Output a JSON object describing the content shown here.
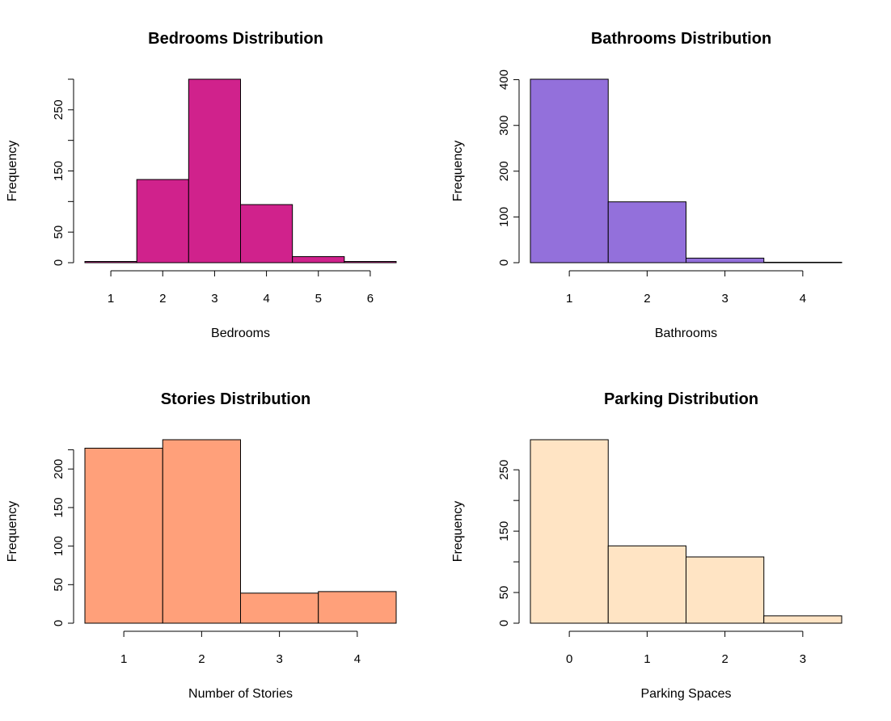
{
  "chart_data": [
    {
      "type": "bar",
      "title": "Bedrooms Distribution",
      "xlabel": "Bedrooms",
      "ylabel": "Frequency",
      "categories": [
        "1",
        "2",
        "3",
        "4",
        "5",
        "6"
      ],
      "values": [
        2,
        136,
        300,
        95,
        10,
        2
      ],
      "x_ticks": [
        1,
        2,
        3,
        4,
        5,
        6
      ],
      "y_ticks": [
        0,
        50,
        150,
        250
      ],
      "ylim": [
        0,
        300
      ],
      "color": "#D0228C"
    },
    {
      "type": "bar",
      "title": "Bathrooms Distribution",
      "xlabel": "Bathrooms",
      "ylabel": "Frequency",
      "categories": [
        "1",
        "2",
        "3",
        "4"
      ],
      "values": [
        401,
        133,
        10,
        1
      ],
      "x_ticks": [
        1,
        2,
        3,
        4
      ],
      "y_ticks": [
        0,
        100,
        200,
        300,
        400
      ],
      "ylim": [
        0,
        401
      ],
      "color": "#9370DB"
    },
    {
      "type": "bar",
      "title": "Stories Distribution",
      "xlabel": "Number of Stories",
      "ylabel": "Frequency",
      "categories": [
        "1",
        "2",
        "3",
        "4"
      ],
      "values": [
        227,
        238,
        39,
        41
      ],
      "x_ticks": [
        1,
        2,
        3,
        4
      ],
      "y_ticks": [
        0,
        50,
        100,
        150,
        200
      ],
      "ylim": [
        0,
        238
      ],
      "color": "#FFA07A"
    },
    {
      "type": "bar",
      "title": "Parking Distribution",
      "xlabel": "Parking Spaces",
      "ylabel": "Frequency",
      "categories": [
        "0",
        "1",
        "2",
        "3"
      ],
      "values": [
        299,
        126,
        108,
        12
      ],
      "x_ticks": [
        0,
        1,
        2,
        3
      ],
      "y_ticks": [
        0,
        50,
        150,
        250
      ],
      "ylim": [
        0,
        299
      ],
      "color": "#FFE4C4"
    }
  ]
}
